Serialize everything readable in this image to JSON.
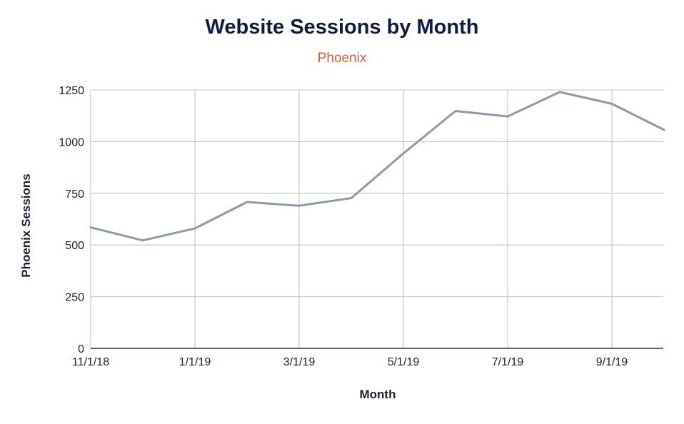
{
  "chart_data": {
    "type": "line",
    "title": "Website Sessions by Month",
    "subtitle": "Phoenix",
    "xlabel": "Month",
    "ylabel": "Phoenix Sessions",
    "x": [
      "11/1/18",
      "12/1/18",
      "1/1/19",
      "2/1/19",
      "3/1/19",
      "4/1/19",
      "5/1/19",
      "6/1/19",
      "7/1/19",
      "8/1/19",
      "9/1/19",
      "10/1/19"
    ],
    "x_tick_labels": [
      "11/1/18",
      "1/1/19",
      "3/1/19",
      "5/1/19",
      "7/1/19",
      "9/1/19"
    ],
    "y_ticks": [
      0,
      250,
      500,
      750,
      1000,
      1250
    ],
    "ylim": [
      0,
      1250
    ],
    "series": [
      {
        "values": [
          585,
          522,
          580,
          708,
          690,
          727,
          943,
          1148,
          1122,
          1240,
          1183,
          1057
        ]
      }
    ],
    "grid": true,
    "legend": "none",
    "colors": {
      "line": "#8a9bab",
      "grid": "#cccccc",
      "axis": "#333333",
      "title": "#0f1c3f",
      "subtitle": "#e05a3a"
    }
  }
}
